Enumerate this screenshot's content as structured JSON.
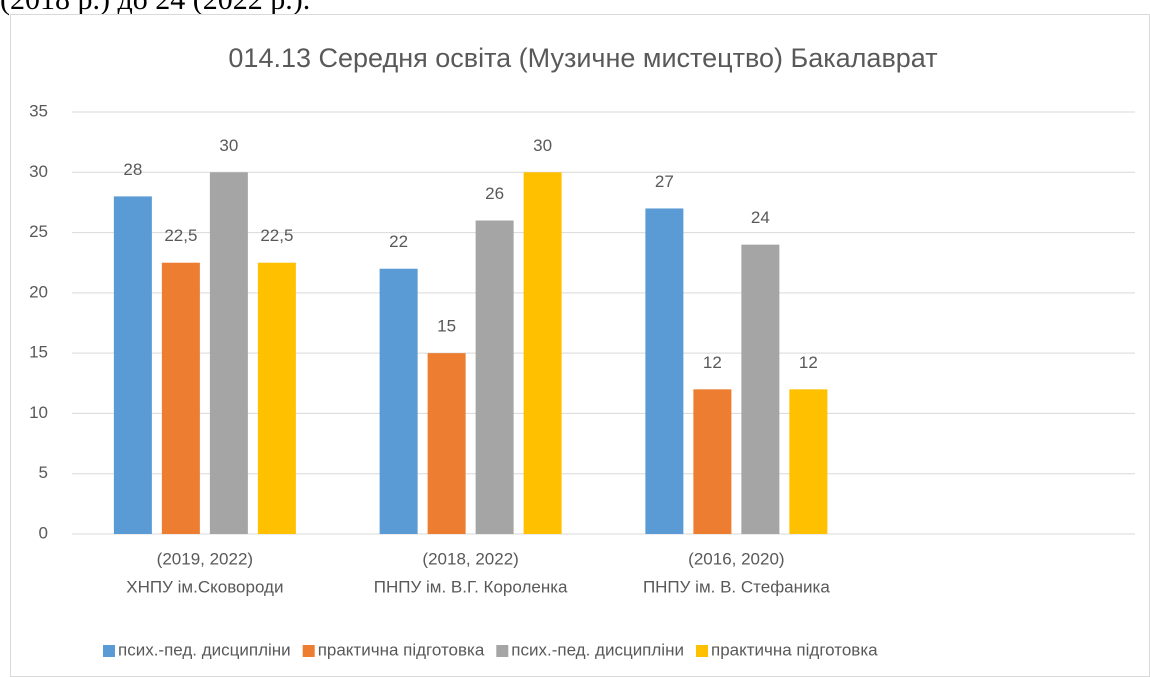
{
  "context_text": "(2018 р.) до 24 (2022 р.).",
  "chart_data": {
    "type": "bar",
    "title": "014.13 Середня освіта (Музичне мистецтво) Бакалаврат",
    "categories": [
      [
        "(2019, 2022)",
        "ХНПУ ім.Сковороди"
      ],
      [
        "(2018, 2022)",
        "ПНПУ ім. В.Г. Короленка"
      ],
      [
        "(2016, 2020)",
        "ПНПУ ім. В. Стефаника"
      ],
      null
    ],
    "series": [
      {
        "name": "псих.-пед. дисципліни",
        "color": "#5b9bd5",
        "values": [
          28,
          22,
          27,
          null
        ]
      },
      {
        "name": "практична підготовка",
        "color": "#ed7d31",
        "values": [
          22.5,
          15,
          12,
          null
        ],
        "value_labels": [
          "22,5",
          "15",
          "12",
          null
        ]
      },
      {
        "name": "псих.-пед. дисципліни",
        "color": "#a5a5a5",
        "values": [
          30,
          26,
          24,
          null
        ]
      },
      {
        "name": "практична підготовка",
        "color": "#ffc000",
        "values": [
          22.5,
          30,
          12,
          null
        ],
        "value_labels": [
          "22,5",
          "30",
          "12",
          null
        ]
      }
    ],
    "ylim": [
      0,
      35
    ],
    "yticks": [
      0,
      5,
      10,
      15,
      20,
      25,
      30,
      35
    ],
    "grid": true,
    "legend": "bottom"
  }
}
